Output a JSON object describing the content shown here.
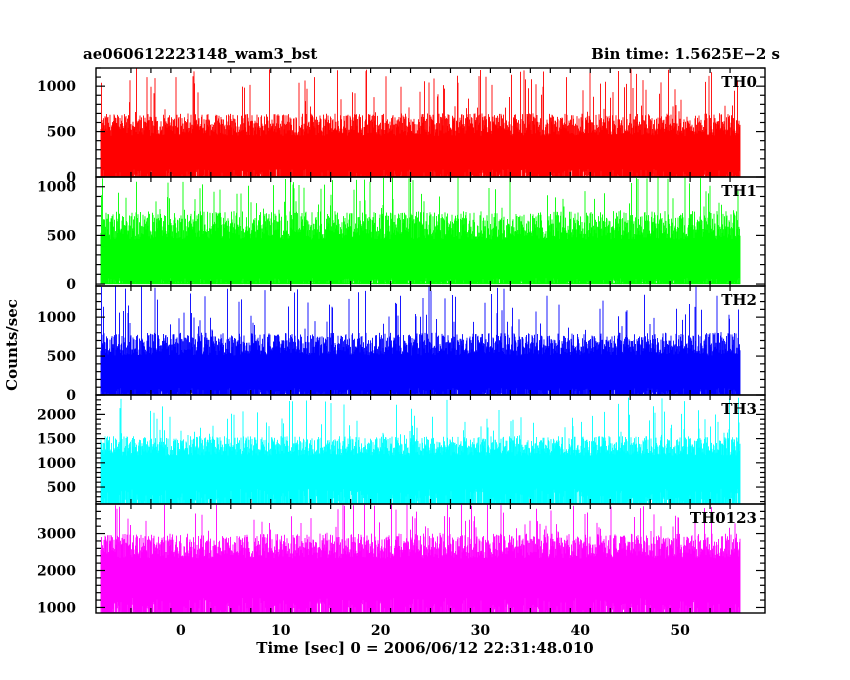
{
  "header": {
    "left_title": "ae060612223148_wam3_bst",
    "right_title": "Bin time: 1.5625E−2 s"
  },
  "ylabel": "Counts/sec",
  "xlabel": "Time [sec] 0 = 2006/06/12 22:31:48.010",
  "chart_data": {
    "type": "line",
    "title": "ae060612223148_wam3_bst",
    "subtitle": "Bin time: 1.5625E−2 s",
    "xlabel": "Time [sec] 0 = 2006/06/12 22:31:48.010",
    "ylabel": "Counts/sec",
    "xlim": [
      -8.5,
      58.5
    ],
    "x_ticks": [
      0,
      10,
      20,
      30,
      40,
      50
    ],
    "data_x_range": [
      -8,
      56
    ],
    "bin_time_s": 0.015625,
    "series": [
      {
        "name": "TH0",
        "color": "#ff0000",
        "ylim": [
          0,
          1200
        ],
        "y_ticks": [
          0,
          500,
          1000
        ],
        "baseline": 0,
        "typical_upper": 700,
        "typical_lower": 150,
        "max_peak": 1200,
        "min_dip": 0
      },
      {
        "name": "TH1",
        "color": "#00ff00",
        "ylim": [
          -20,
          1100
        ],
        "y_ticks": [
          0,
          500,
          1000
        ],
        "baseline": 0,
        "typical_upper": 750,
        "typical_lower": 100,
        "max_peak": 1100,
        "min_dip": 0
      },
      {
        "name": "TH2",
        "color": "#0000ff",
        "ylim": [
          0,
          1400
        ],
        "y_ticks": [
          0,
          500,
          1000
        ],
        "baseline": 0,
        "typical_upper": 800,
        "typical_lower": 150,
        "max_peak": 1400,
        "min_dip": 0
      },
      {
        "name": "TH3",
        "color": "#00ffff",
        "ylim": [
          150,
          2400
        ],
        "y_ticks": [
          500,
          1000,
          1500,
          2000
        ],
        "baseline": 150,
        "typical_upper": 1550,
        "typical_lower": 650,
        "max_peak": 2350,
        "min_dip": 200
      },
      {
        "name": "TH0123",
        "color": "#ff00ff",
        "ylim": [
          850,
          3800
        ],
        "y_ticks": [
          1000,
          2000,
          3000
        ],
        "baseline": 850,
        "typical_upper": 3000,
        "typical_lower": 1500,
        "max_peak": 3800,
        "min_dip": 900
      }
    ]
  }
}
